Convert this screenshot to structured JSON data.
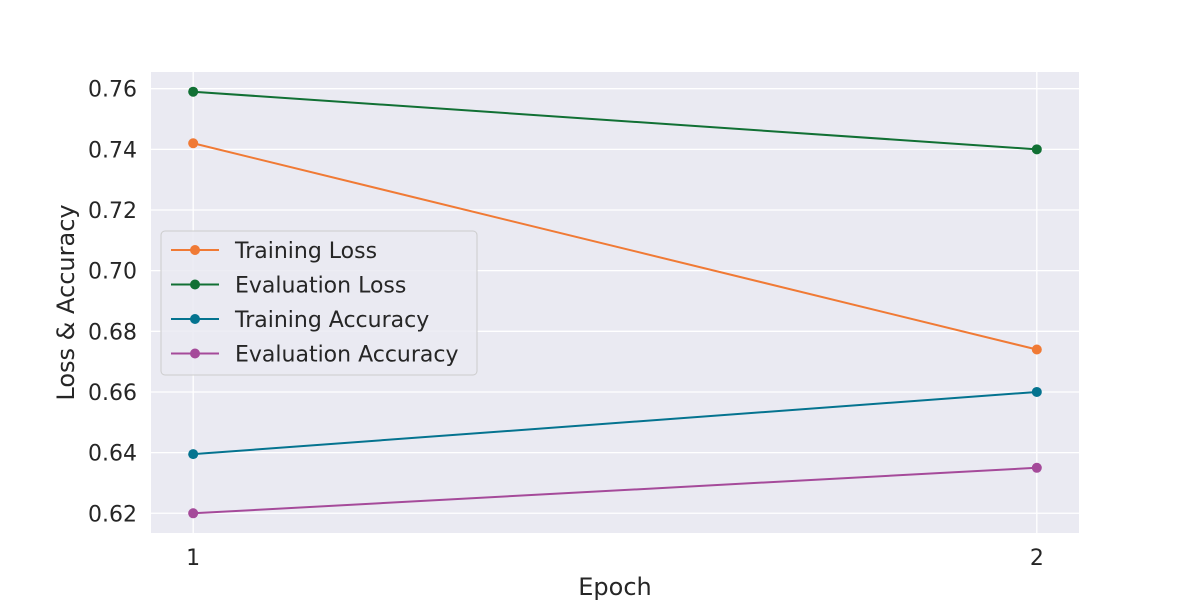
{
  "chart_data": {
    "type": "line",
    "title": "",
    "xlabel": "Epoch",
    "ylabel": "Loss & Accuracy",
    "x": [
      1,
      2
    ],
    "xticks": [
      "1",
      "2"
    ],
    "xlim": [
      0.95,
      2.05
    ],
    "ylim": [
      0.6135,
      0.7655
    ],
    "yticks": [
      "0.62",
      "0.64",
      "0.66",
      "0.68",
      "0.70",
      "0.72",
      "0.74",
      "0.76"
    ],
    "grid": true,
    "legend_position": "center-left",
    "background_color": "#eaeaf2",
    "series": [
      {
        "name": "Training Loss",
        "color": "#f07a35",
        "values": [
          0.742,
          0.674
        ]
      },
      {
        "name": "Evaluation Loss",
        "color": "#117034",
        "values": [
          0.759,
          0.74
        ]
      },
      {
        "name": "Training Accuracy",
        "color": "#04738f",
        "values": [
          0.6395,
          0.66
        ]
      },
      {
        "name": "Evaluation Accuracy",
        "color": "#a54a9a",
        "values": [
          0.62,
          0.635
        ]
      }
    ]
  }
}
